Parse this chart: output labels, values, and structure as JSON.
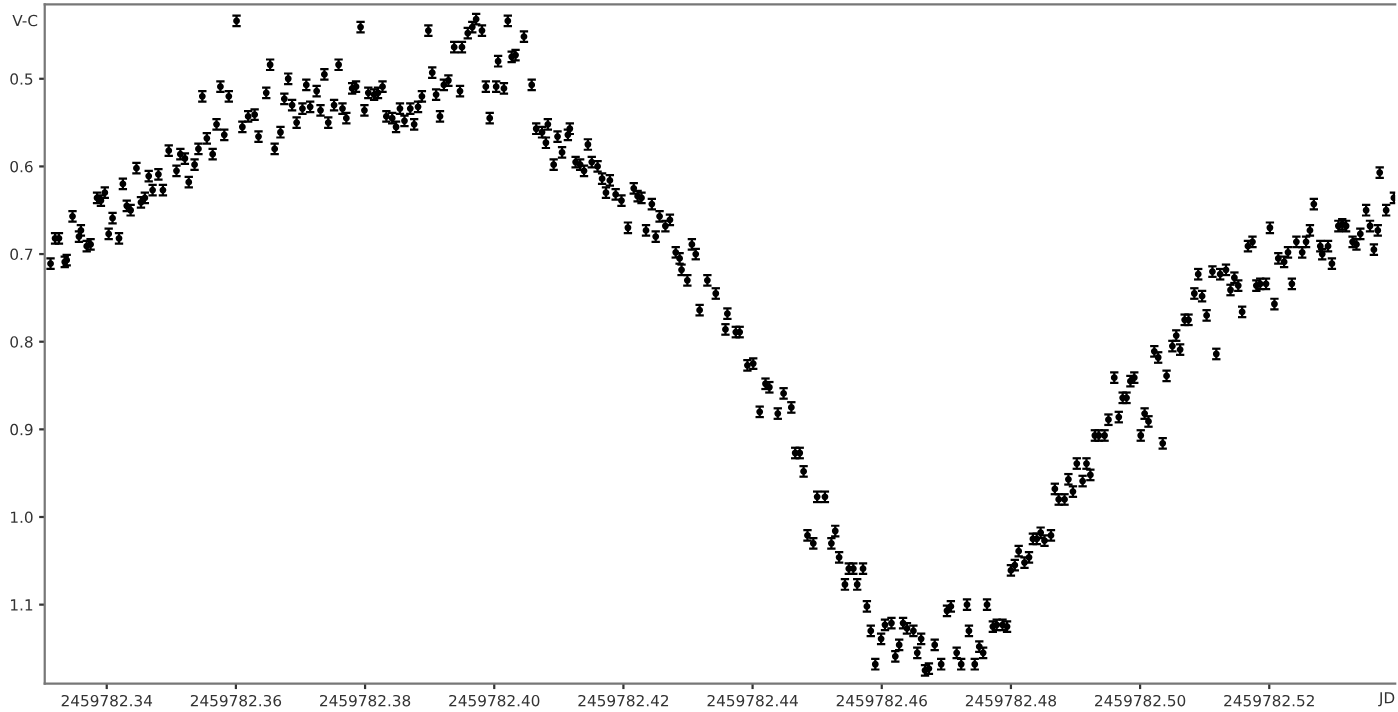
{
  "chart_data": {
    "type": "scatter",
    "xlabel": "JD",
    "ylabel": "V-C",
    "xlim": [
      2459782.3304,
      2459782.5395
    ],
    "ylim": [
      1.19,
      0.415
    ],
    "xticks": [
      2459782.34,
      2459782.36,
      2459782.38,
      {
        "value": 2459782.4,
        "label": "2459782.40"
      },
      2459782.42,
      2459782.44,
      2459782.46,
      2459782.48,
      {
        "value": 2459782.5,
        "label": "2459782.50"
      },
      2459782.52
    ],
    "yticks": [
      0.5,
      0.6,
      0.7,
      0.8,
      0.9,
      {
        "value": 1.0,
        "label": "1.0"
      },
      1.1
    ],
    "marker": "circle",
    "grid": false,
    "legend": false,
    "series": [
      {
        "color": "#000000",
        "x": [
          2459782.3313,
          2459782.332,
          2459782.3326,
          2459782.3335,
          2459782.3338,
          2459782.3347,
          2459782.3357,
          2459782.336,
          2459782.3369,
          2459782.3375,
          2459782.3385,
          2459782.3391,
          2459782.3397,
          2459782.3403,
          2459782.3409,
          2459782.3419,
          2459782.3425,
          2459782.3431,
          2459782.3437,
          2459782.3446,
          2459782.3453,
          2459782.3459,
          2459782.3465,
          2459782.3471,
          2459782.348,
          2459782.3487,
          2459782.3496,
          2459782.3508,
          2459782.3514,
          2459782.3521,
          2459782.3527,
          2459782.3536,
          2459782.3542,
          2459782.3548,
          2459782.3555,
          2459782.3564,
          2459782.357,
          2459782.3576,
          2459782.3582,
          2459782.3589,
          2459782.3601,
          2459782.361,
          2459782.3619,
          2459782.3629,
          2459782.3635,
          2459782.3647,
          2459782.3653,
          2459782.366,
          2459782.3669,
          2459782.3675,
          2459782.3681,
          2459782.3687,
          2459782.3694,
          2459782.3703,
          2459782.3709,
          2459782.3715,
          2459782.3725,
          2459782.3731,
          2459782.3737,
          2459782.3743,
          2459782.3752,
          2459782.3759,
          2459782.3765,
          2459782.3771,
          2459782.378,
          2459782.3786,
          2459782.3793,
          2459782.3799,
          2459782.3805,
          2459782.3814,
          2459782.382,
          2459782.3827,
          2459782.3833,
          2459782.3842,
          2459782.3848,
          2459782.3854,
          2459782.3861,
          2459782.387,
          2459782.3876,
          2459782.3882,
          2459782.3888,
          2459782.3898,
          2459782.3904,
          2459782.391,
          2459782.3916,
          2459782.3922,
          2459782.3929,
          2459782.3938,
          2459782.395,
          2459782.3947,
          2459782.3959,
          2459782.3966,
          2459782.3972,
          2459782.3981,
          2459782.3987,
          2459782.3993,
          2459782.4003,
          2459782.4006,
          2459782.4015,
          2459782.4021,
          2459782.4027,
          2459782.4033,
          2459782.4046,
          2459782.4058,
          2459782.4065,
          2459782.4074,
          2459782.408,
          2459782.4083,
          2459782.4092,
          2459782.4098,
          2459782.4105,
          2459782.4114,
          2459782.4117,
          2459782.4126,
          2459782.4133,
          2459782.4139,
          2459782.4145,
          2459782.4151,
          2459782.416,
          2459782.4167,
          2459782.4173,
          2459782.4179,
          2459782.4188,
          2459782.4197,
          2459782.4207,
          2459782.4216,
          2459782.4222,
          2459782.4228,
          2459782.4235,
          2459782.4244,
          2459782.425,
          2459782.4256,
          2459782.4265,
          2459782.4272,
          2459782.4281,
          2459782.4287,
          2459782.429,
          2459782.4299,
          2459782.4306,
          2459782.4312,
          2459782.4318,
          2459782.433,
          2459782.4343,
          2459782.4361,
          2459782.4358,
          2459782.4374,
          2459782.438,
          2459782.4392,
          2459782.4401,
          2459782.4411,
          2459782.442,
          2459782.4426,
          2459782.4439,
          2459782.4448,
          2459782.446,
          2459782.4466,
          2459782.4473,
          2459782.4479,
          2459782.45,
          2459782.4512,
          2459782.4485,
          2459782.4494,
          2459782.4522,
          2459782.4528,
          2459782.4534,
          2459782.4543,
          2459782.4549,
          2459782.4556,
          2459782.4562,
          2459782.4571,
          2459782.4577,
          2459782.4583,
          2459782.459,
          2459782.4599,
          2459782.4605,
          2459782.4615,
          2459782.4621,
          2459782.4627,
          2459782.4633,
          2459782.4639,
          2459782.4649,
          2459782.4655,
          2459782.4661,
          2459782.4667,
          2459782.4673,
          2459782.4682,
          2459782.4692,
          2459782.4701,
          2459782.4707,
          2459782.4716,
          2459782.4723,
          2459782.4732,
          2459782.4735,
          2459782.4744,
          2459782.4751,
          2459782.4757,
          2459782.4763,
          2459782.4772,
          2459782.4778,
          2459782.4787,
          2459782.4794,
          2459782.48,
          2459782.4806,
          2459782.4812,
          2459782.4821,
          2459782.4828,
          2459782.4834,
          2459782.484,
          2459782.4846,
          2459782.4852,
          2459782.4862,
          2459782.4868,
          2459782.4874,
          2459782.4883,
          2459782.4889,
          2459782.4896,
          2459782.4902,
          2459782.4911,
          2459782.4917,
          2459782.4923,
          2459782.493,
          2459782.4936,
          2459782.4945,
          2459782.4951,
          2459782.496,
          2459782.4967,
          2459782.4973,
          2459782.4979,
          2459782.4985,
          2459782.4991,
          2459782.5001,
          2459782.5007,
          2459782.5013,
          2459782.5022,
          2459782.5028,
          2459782.5035,
          2459782.5041,
          2459782.505,
          2459782.5056,
          2459782.5062,
          2459782.5069,
          2459782.5075,
          2459782.5084,
          2459782.509,
          2459782.5096,
          2459782.5103,
          2459782.5112,
          2459782.5118,
          2459782.5124,
          2459782.5133,
          2459782.514,
          2459782.5146,
          2459782.5152,
          2459782.5158,
          2459782.5167,
          2459782.5174,
          2459782.518,
          2459782.5186,
          2459782.5195,
          2459782.5201,
          2459782.5208,
          2459782.5214,
          2459782.5223,
          2459782.5229,
          2459782.5235,
          2459782.5242,
          2459782.5251,
          2459782.5257,
          2459782.5263,
          2459782.5269,
          2459782.5279,
          2459782.5282,
          2459782.5291,
          2459782.5297,
          2459782.5307,
          2459782.5313,
          2459782.5319,
          2459782.5329,
          2459782.5335,
          2459782.5341,
          2459782.535,
          2459782.5356,
          2459782.5362,
          2459782.5368,
          2459782.5381,
          2459782.5371,
          2459782.5393
        ],
        "values": [
          0.711,
          0.682,
          0.682,
          0.709,
          0.707,
          0.657,
          0.68,
          0.673,
          0.691,
          0.689,
          0.636,
          0.639,
          0.63,
          0.677,
          0.659,
          0.682,
          0.62,
          0.645,
          0.65,
          0.602,
          0.641,
          0.636,
          0.611,
          0.627,
          0.609,
          0.627,
          0.582,
          0.605,
          0.586,
          0.591,
          0.618,
          0.598,
          0.58,
          0.52,
          0.568,
          0.586,
          0.552,
          0.509,
          0.564,
          0.52,
          0.434,
          0.555,
          0.543,
          0.541,
          0.566,
          0.516,
          0.484,
          0.58,
          0.561,
          0.523,
          0.5,
          0.53,
          0.55,
          0.534,
          0.507,
          0.532,
          0.514,
          0.536,
          0.495,
          0.55,
          0.53,
          0.484,
          0.534,
          0.545,
          0.511,
          0.509,
          0.441,
          0.536,
          0.516,
          0.518,
          0.516,
          0.509,
          0.543,
          0.545,
          0.555,
          0.534,
          0.548,
          0.534,
          0.552,
          0.532,
          0.52,
          0.445,
          0.493,
          0.518,
          0.543,
          0.507,
          0.502,
          0.464,
          0.464,
          0.514,
          0.448,
          0.441,
          0.432,
          0.445,
          0.509,
          0.545,
          0.509,
          0.48,
          0.511,
          0.434,
          0.475,
          0.473,
          0.452,
          0.507,
          0.557,
          0.561,
          0.573,
          0.552,
          0.598,
          0.566,
          0.584,
          0.564,
          0.557,
          0.595,
          0.598,
          0.605,
          0.575,
          0.595,
          0.6,
          0.614,
          0.63,
          0.616,
          0.632,
          0.639,
          0.67,
          0.625,
          0.634,
          0.636,
          0.673,
          0.643,
          0.68,
          0.657,
          0.668,
          0.661,
          0.698,
          0.705,
          0.718,
          0.73,
          0.689,
          0.7,
          0.764,
          0.73,
          0.745,
          0.768,
          0.786,
          0.789,
          0.789,
          0.827,
          0.825,
          0.88,
          0.848,
          0.852,
          0.882,
          0.859,
          0.875,
          0.927,
          0.927,
          0.948,
          0.977,
          0.977,
          1.021,
          1.03,
          1.03,
          1.016,
          1.046,
          1.077,
          1.059,
          1.059,
          1.077,
          1.059,
          1.102,
          1.13,
          1.168,
          1.139,
          1.123,
          1.121,
          1.159,
          1.146,
          1.121,
          1.127,
          1.13,
          1.155,
          1.139,
          1.175,
          1.173,
          1.146,
          1.168,
          1.107,
          1.102,
          1.155,
          1.168,
          1.1,
          1.13,
          1.168,
          1.148,
          1.155,
          1.1,
          1.125,
          1.123,
          1.123,
          1.125,
          1.061,
          1.055,
          1.039,
          1.052,
          1.046,
          1.025,
          1.025,
          1.018,
          1.027,
          1.021,
          0.968,
          0.98,
          0.98,
          0.957,
          0.971,
          0.939,
          0.959,
          0.939,
          0.952,
          0.907,
          0.907,
          0.907,
          0.889,
          0.841,
          0.886,
          0.864,
          0.864,
          0.845,
          0.841,
          0.907,
          0.882,
          0.891,
          0.811,
          0.818,
          0.916,
          0.839,
          0.805,
          0.793,
          0.809,
          0.775,
          0.775,
          0.745,
          0.723,
          0.748,
          0.77,
          0.72,
          0.814,
          0.723,
          0.718,
          0.741,
          0.727,
          0.736,
          0.766,
          0.691,
          0.686,
          0.736,
          0.734,
          0.734,
          0.67,
          0.757,
          0.705,
          0.709,
          0.698,
          0.734,
          0.686,
          0.698,
          0.686,
          0.673,
          0.643,
          0.691,
          0.7,
          0.691,
          0.711,
          0.668,
          0.666,
          0.668,
          0.686,
          0.689,
          0.677,
          0.65,
          0.668,
          0.695,
          0.673,
          0.65,
          0.607,
          0.636
        ],
        "errors": [
          0.006,
          0.006,
          0.006,
          0.006,
          0.006,
          0.006,
          0.006,
          0.006,
          0.006,
          0.006,
          0.006,
          0.006,
          0.006,
          0.006,
          0.006,
          0.006,
          0.006,
          0.006,
          0.006,
          0.006,
          0.006,
          0.006,
          0.006,
          0.006,
          0.006,
          0.006,
          0.006,
          0.006,
          0.006,
          0.006,
          0.006,
          0.006,
          0.006,
          0.006,
          0.006,
          0.006,
          0.006,
          0.006,
          0.006,
          0.006,
          0.006,
          0.006,
          0.006,
          0.006,
          0.006,
          0.006,
          0.006,
          0.006,
          0.006,
          0.006,
          0.006,
          0.006,
          0.006,
          0.006,
          0.006,
          0.006,
          0.006,
          0.006,
          0.006,
          0.006,
          0.006,
          0.006,
          0.006,
          0.006,
          0.006,
          0.006,
          0.006,
          0.006,
          0.006,
          0.006,
          0.006,
          0.006,
          0.006,
          0.006,
          0.006,
          0.006,
          0.006,
          0.006,
          0.006,
          0.006,
          0.006,
          0.006,
          0.006,
          0.006,
          0.006,
          0.006,
          0.006,
          0.006,
          0.006,
          0.006,
          0.006,
          0.006,
          0.006,
          0.006,
          0.006,
          0.006,
          0.006,
          0.006,
          0.006,
          0.006,
          0.006,
          0.006,
          0.006,
          0.006,
          0.006,
          0.006,
          0.006,
          0.006,
          0.006,
          0.006,
          0.006,
          0.006,
          0.006,
          0.006,
          0.006,
          0.006,
          0.006,
          0.006,
          0.006,
          0.006,
          0.006,
          0.006,
          0.006,
          0.006,
          0.006,
          0.006,
          0.006,
          0.006,
          0.006,
          0.006,
          0.006,
          0.006,
          0.006,
          0.006,
          0.006,
          0.006,
          0.006,
          0.006,
          0.006,
          0.006,
          0.006,
          0.006,
          0.006,
          0.006,
          0.006,
          0.006,
          0.006,
          0.006,
          0.006,
          0.006,
          0.006,
          0.006,
          0.006,
          0.006,
          0.006,
          0.006,
          0.006,
          0.006,
          0.006,
          0.006,
          0.006,
          0.006,
          0.006,
          0.006,
          0.006,
          0.006,
          0.006,
          0.006,
          0.006,
          0.006,
          0.006,
          0.006,
          0.006,
          0.006,
          0.006,
          0.006,
          0.006,
          0.006,
          0.006,
          0.006,
          0.006,
          0.006,
          0.006,
          0.006,
          0.006,
          0.006,
          0.006,
          0.006,
          0.006,
          0.006,
          0.006,
          0.006,
          0.006,
          0.006,
          0.006,
          0.006,
          0.006,
          0.006,
          0.006,
          0.006,
          0.006,
          0.006,
          0.006,
          0.006,
          0.006,
          0.006,
          0.006,
          0.006,
          0.006,
          0.006,
          0.006,
          0.006,
          0.006,
          0.006,
          0.006,
          0.006,
          0.006,
          0.006,
          0.006,
          0.006,
          0.006,
          0.006,
          0.006,
          0.006,
          0.006,
          0.006,
          0.006,
          0.006,
          0.006,
          0.006,
          0.006,
          0.006,
          0.006,
          0.006,
          0.006,
          0.006,
          0.006,
          0.006,
          0.006,
          0.006,
          0.006,
          0.006,
          0.006,
          0.006,
          0.006,
          0.006,
          0.006,
          0.006,
          0.006,
          0.006,
          0.006,
          0.006,
          0.006,
          0.006,
          0.006,
          0.006,
          0.006,
          0.006,
          0.006,
          0.006,
          0.006,
          0.006,
          0.006,
          0.006,
          0.006,
          0.006,
          0.006,
          0.006,
          0.006,
          0.006,
          0.006,
          0.006,
          0.006,
          0.006,
          0.006,
          0.006,
          0.006,
          0.006,
          0.006,
          0.006,
          0.006,
          0.006,
          0.006,
          0.006,
          0.006,
          0.006,
          0.006
        ]
      }
    ]
  }
}
